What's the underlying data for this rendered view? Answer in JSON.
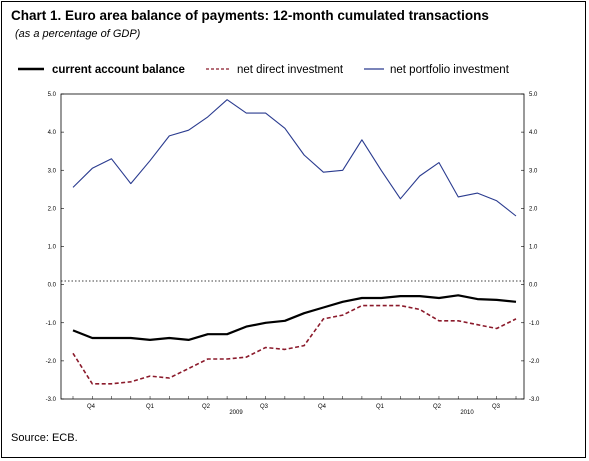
{
  "title": "Chart 1. Euro area balance of payments: 12-month cumulated transactions",
  "subtitle": "(as a percentage of GDP)",
  "source": "Source: ECB.",
  "colors": {
    "current_account": "#000000",
    "direct_investment": "#8b1a2b",
    "portfolio_investment": "#2a3b8f"
  },
  "chart_data": {
    "type": "line",
    "ylim": [
      -3.0,
      5.0
    ],
    "y_ticks": [
      "5.0",
      "4.0",
      "3.0",
      "2.0",
      "1.0",
      "0.0",
      "-1.0",
      "-2.0",
      "-3.0"
    ],
    "x_quarter_labels": [
      "Q4",
      "Q1",
      "Q2",
      "Q3",
      "Q4",
      "Q1",
      "Q2",
      "Q3"
    ],
    "x_year_labels": [
      "2009",
      "2010"
    ],
    "legend_placement": "top",
    "zero_line": "dotted",
    "series": [
      {
        "name": "current account balance",
        "style": "solid-thick",
        "values": [
          -1.2,
          -1.4,
          -1.4,
          -1.4,
          -1.45,
          -1.4,
          -1.45,
          -1.3,
          -1.3,
          -1.1,
          -1.0,
          -0.95,
          -0.75,
          -0.6,
          -0.45,
          -0.35,
          -0.35,
          -0.3,
          -0.3,
          -0.35,
          -0.28,
          -0.38,
          -0.4,
          -0.45
        ]
      },
      {
        "name": "net direct investment",
        "style": "dashed",
        "values": [
          -1.8,
          -2.6,
          -2.6,
          -2.55,
          -2.4,
          -2.45,
          -2.2,
          -1.95,
          -1.95,
          -1.9,
          -1.65,
          -1.7,
          -1.6,
          -0.9,
          -0.8,
          -0.55,
          -0.55,
          -0.55,
          -0.65,
          -0.95,
          -0.95,
          -1.05,
          -1.15,
          -0.9
        ]
      },
      {
        "name": "net portfolio investment",
        "style": "solid-thin",
        "values": [
          2.55,
          3.05,
          3.3,
          2.65,
          3.25,
          3.9,
          4.05,
          4.4,
          4.85,
          4.5,
          4.5,
          4.1,
          3.4,
          2.95,
          3.0,
          3.8,
          3.0,
          2.25,
          2.85,
          3.2,
          2.3,
          2.4,
          2.2,
          1.8
        ]
      }
    ]
  }
}
